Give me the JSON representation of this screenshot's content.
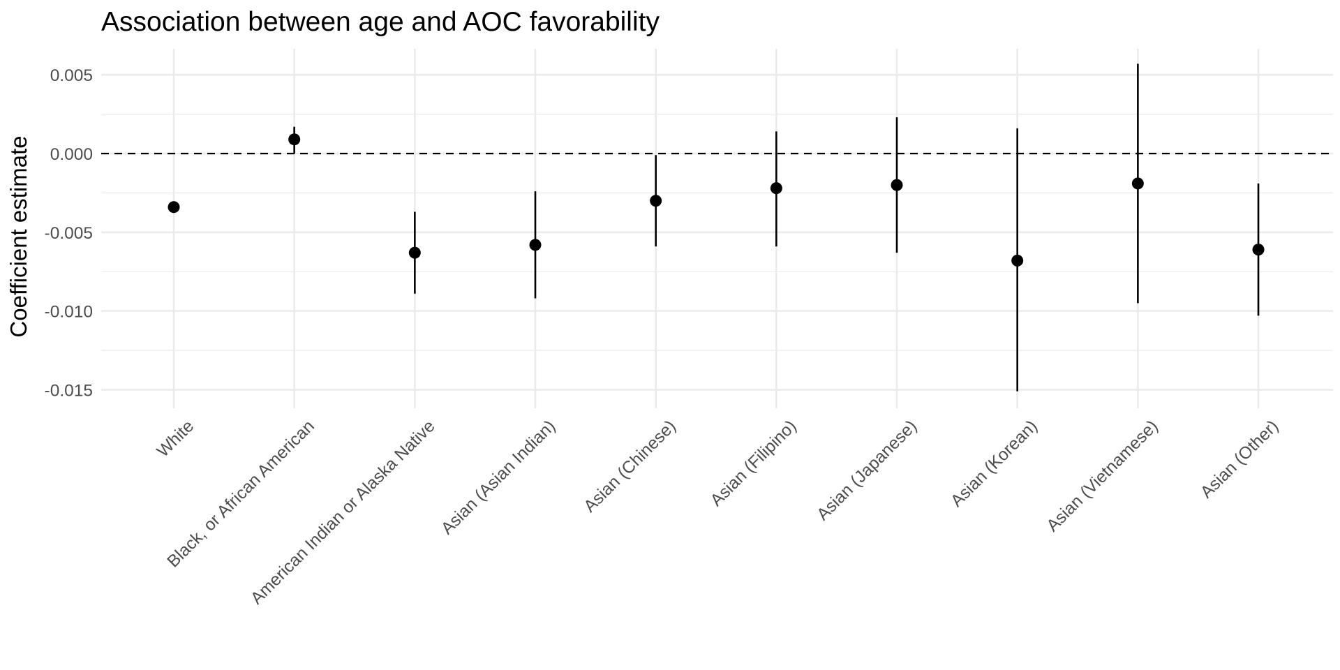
{
  "chart_data": {
    "type": "scatter",
    "title": "Association between age and AOC favorability",
    "xlabel": "",
    "ylabel": "Coefficient estimate",
    "ylim": [
      -0.0162,
      0.0072
    ],
    "grid": true,
    "reference_line": {
      "y": 0.0,
      "style": "dashed"
    },
    "y_ticks": [
      "0.005",
      "0.000",
      "-0.005",
      "-0.010",
      "-0.015"
    ],
    "y_tick_values": [
      0.005,
      0.0,
      -0.005,
      -0.01,
      -0.015
    ],
    "categories": [
      "White",
      "Black, or African American",
      "American Indian or Alaska Native",
      "Asian (Asian Indian)",
      "Asian (Chinese)",
      "Asian (Filipino)",
      "Asian (Japanese)",
      "Asian (Korean)",
      "Asian (Vietnamese)",
      "Asian (Other)"
    ],
    "estimates": [
      -0.0034,
      0.0009,
      -0.0063,
      -0.0058,
      -0.003,
      -0.0022,
      -0.002,
      -0.0068,
      -0.0019,
      -0.0061
    ],
    "ci_lower": [
      -0.0034,
      0.0,
      -0.0089,
      -0.0092,
      -0.0059,
      -0.0059,
      -0.0063,
      -0.0151,
      -0.0095,
      -0.0103
    ],
    "ci_upper": [
      -0.0034,
      0.0017,
      -0.0037,
      -0.0024,
      -0.0001,
      0.0014,
      0.0023,
      0.0016,
      0.0057,
      -0.0019
    ],
    "colors": {
      "point": "#000000",
      "grid": "#ebebeb",
      "axis_text": "#4d4d4d"
    }
  }
}
